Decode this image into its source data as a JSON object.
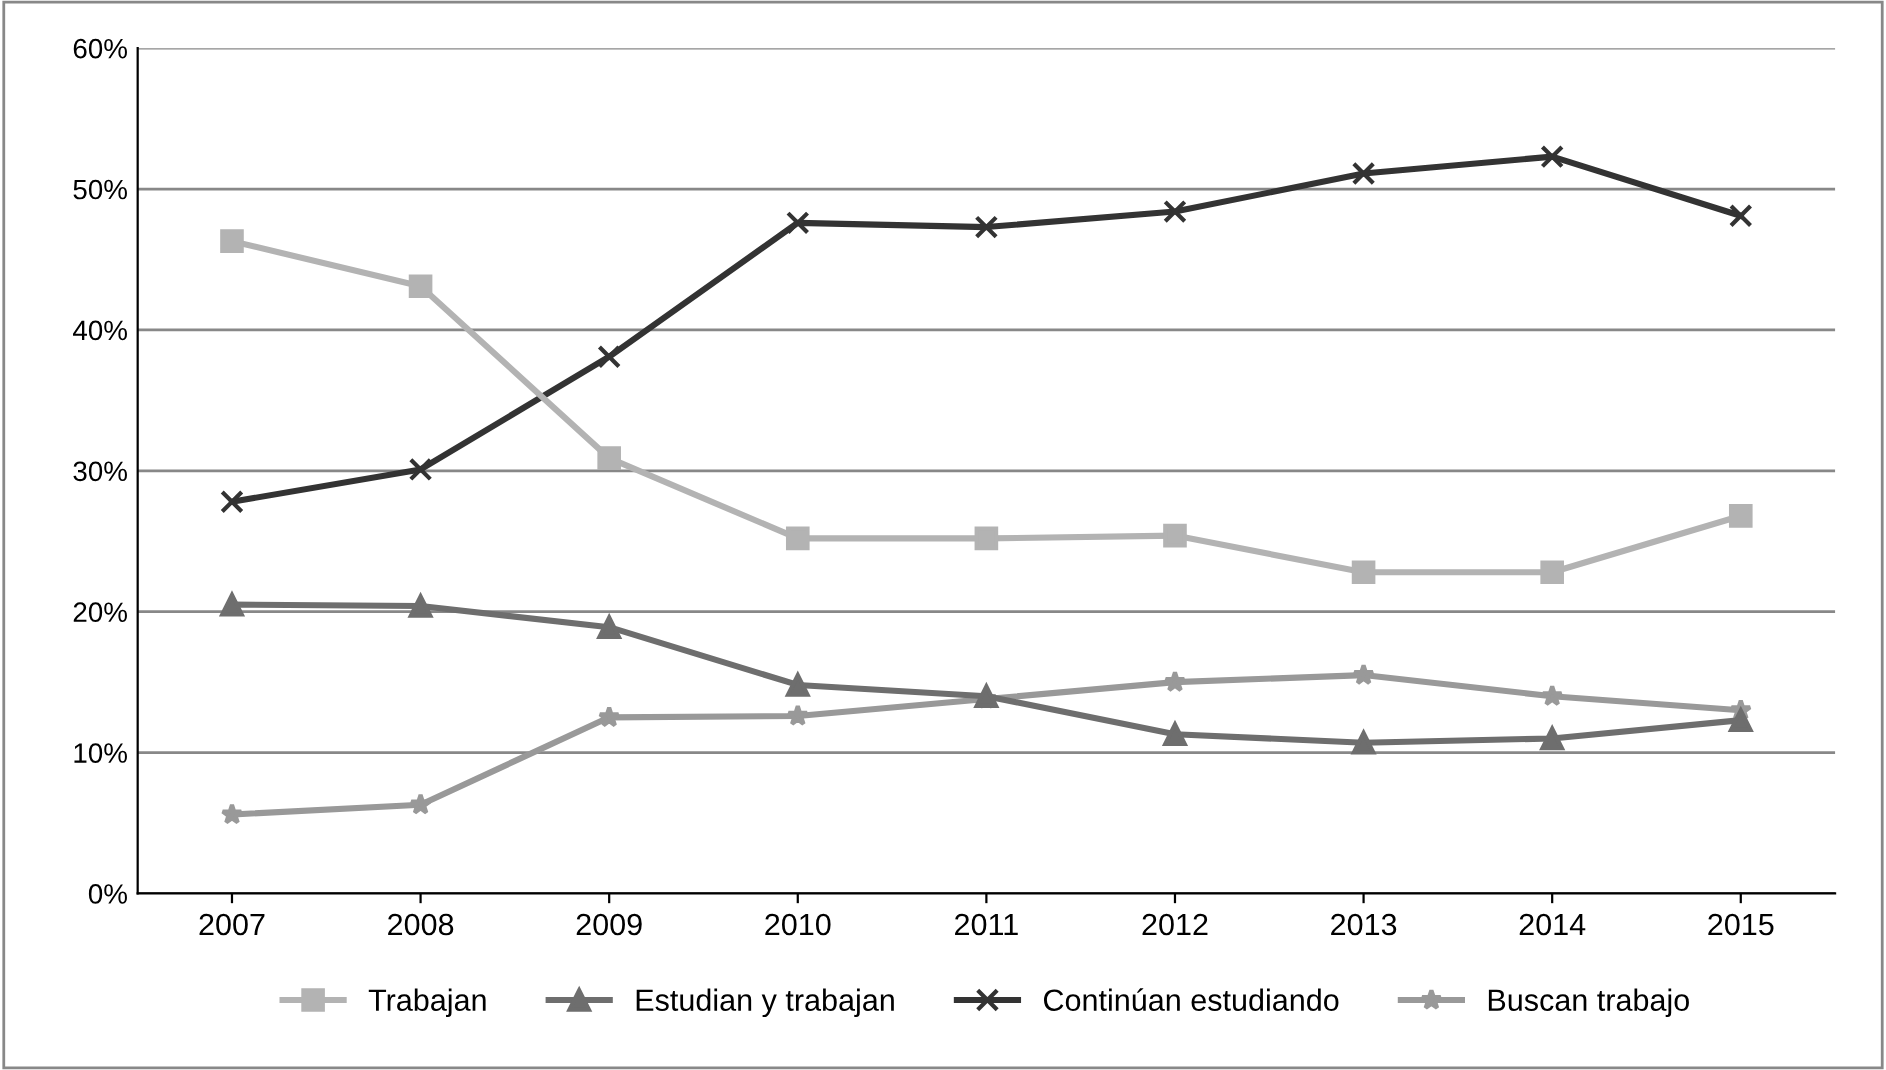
{
  "chart_data": {
    "type": "line",
    "categories": [
      "2007",
      "2008",
      "2009",
      "2010",
      "2011",
      "2012",
      "2013",
      "2014",
      "2015"
    ],
    "series": [
      {
        "name": "Trabajan",
        "color": "#b3b3b3",
        "marker": "square",
        "values": [
          46.3,
          43.1,
          30.9,
          25.2,
          25.2,
          25.4,
          22.8,
          22.8,
          26.8
        ]
      },
      {
        "name": "Estudian y trabajan",
        "color": "#6e6e6e",
        "marker": "triangle",
        "values": [
          20.5,
          20.4,
          18.9,
          14.8,
          14.0,
          11.3,
          10.7,
          11.0,
          12.3
        ]
      },
      {
        "name": "Continúan estudiando",
        "color": "#333333",
        "marker": "cross",
        "values": [
          27.8,
          30.1,
          38.1,
          47.6,
          47.3,
          48.4,
          51.1,
          52.3,
          48.1
        ]
      },
      {
        "name": "Buscan trabajo",
        "color": "#999999",
        "marker": "star",
        "values": [
          5.6,
          6.3,
          12.5,
          12.6,
          13.8,
          15.0,
          15.5,
          14.0,
          13.0
        ]
      }
    ],
    "ylim": [
      0,
      60
    ],
    "yticks": [
      {
        "value": 0,
        "label": "0%"
      },
      {
        "value": 10,
        "label": "10%"
      },
      {
        "value": 20,
        "label": "20%"
      },
      {
        "value": 30,
        "label": "30%"
      },
      {
        "value": 40,
        "label": "40%"
      },
      {
        "value": 50,
        "label": "50%"
      },
      {
        "value": 60,
        "label": "60%"
      }
    ],
    "grid": "y",
    "legend": "bottom",
    "line_style": "solid"
  }
}
